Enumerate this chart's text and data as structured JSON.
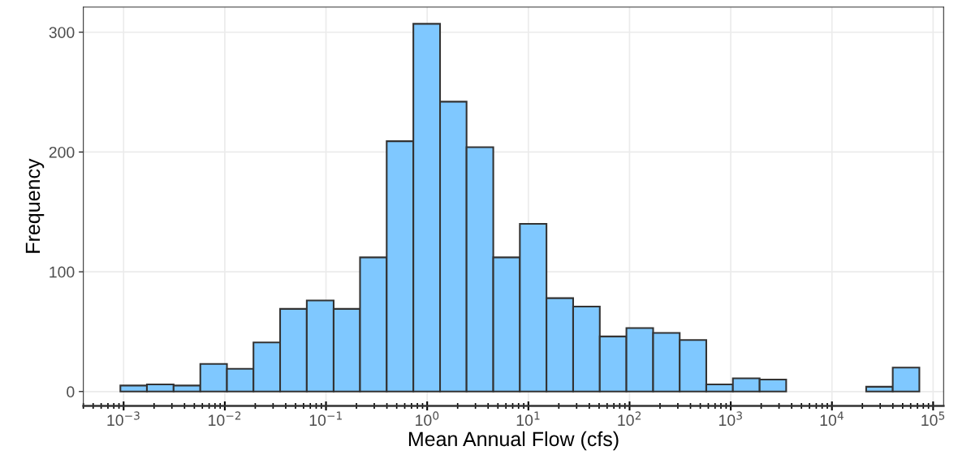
{
  "chart_data": {
    "type": "histogram",
    "xlabel": "Mean Annual Flow (cfs)",
    "ylabel": "Frequency",
    "bins": [
      0.000929,
      0.0017,
      0.00312,
      0.00573,
      0.0105,
      0.0192,
      0.0352,
      0.0646,
      0.119,
      0.217,
      0.398,
      0.73,
      1.34,
      2.45,
      4.5,
      8.24,
      15.1,
      27.7,
      50.8,
      93.1,
      171,
      313,
      573,
      1050,
      1930,
      3530,
      6470,
      11900,
      21800,
      39900,
      73100
    ],
    "values": [
      5,
      6,
      5,
      23,
      19,
      41,
      69,
      76,
      69,
      112,
      209,
      307,
      242,
      204,
      112,
      140,
      78,
      71,
      46,
      53,
      49,
      43,
      6,
      11,
      10,
      0,
      0,
      0,
      4,
      20
    ],
    "color": "#7fc8ff",
    "log": "x",
    "xlim": [
      0.0004,
      127000
    ],
    "ylim": [
      -12,
      321
    ],
    "xticks": [
      {
        "value": 0.001,
        "label": "10$^{−3}$"
      },
      {
        "value": 0.01,
        "label": "10$^{−2}$"
      },
      {
        "value": 0.1,
        "label": "10$^{−1}$"
      },
      {
        "value": 1,
        "label": "10$^{0}$"
      },
      {
        "value": 10,
        "label": "10$^{1}$"
      },
      {
        "value": 100,
        "label": "10$^{2}$"
      },
      {
        "value": 1000,
        "label": "10$^{3}$"
      },
      {
        "value": 10000,
        "label": "10$^{4}$"
      },
      {
        "value": 100000,
        "label": "10$^{5}$"
      }
    ],
    "yticks": [
      0,
      100,
      200,
      300
    ],
    "grid": true
  }
}
